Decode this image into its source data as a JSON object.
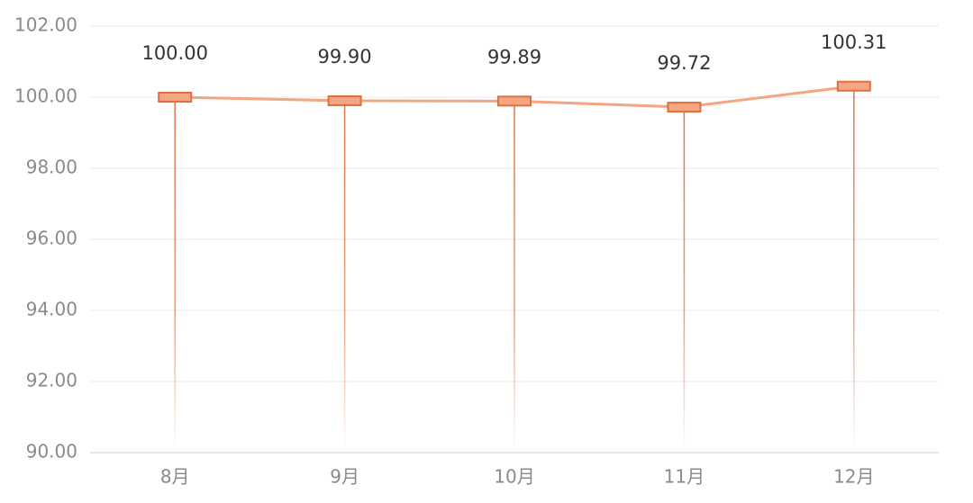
{
  "chart_data": {
    "type": "line",
    "categories": [
      "8月",
      "9月",
      "10月",
      "11月",
      "12月"
    ],
    "values": [
      100.0,
      99.9,
      99.89,
      99.72,
      100.31
    ],
    "value_labels": [
      "100.00",
      "99.90",
      "99.89",
      "99.72",
      "100.31"
    ],
    "color": "#f4a582",
    "ylim": [
      90,
      102
    ],
    "yticks": [
      {
        "value": 90,
        "label": "90.00"
      },
      {
        "value": 92,
        "label": "92.00"
      },
      {
        "value": 94,
        "label": "94.00"
      },
      {
        "value": 96,
        "label": "96.00"
      },
      {
        "value": 98,
        "label": "98.00"
      },
      {
        "value": 100,
        "label": "100.00"
      },
      {
        "value": 102,
        "label": "102.00"
      }
    ],
    "grid": true
  }
}
